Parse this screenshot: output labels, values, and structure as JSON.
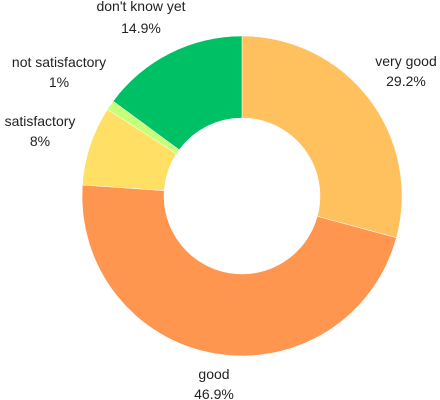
{
  "chart_data": {
    "type": "pie",
    "subtype": "donut",
    "slices": [
      {
        "label": "very good",
        "value_label": "29.2%",
        "value": 29.2,
        "color": "#FFC15E"
      },
      {
        "label": "good",
        "value_label": "46.9%",
        "value": 46.9,
        "color": "#FF9650"
      },
      {
        "label": "satisfactory",
        "value_label": "8%",
        "value": 8.0,
        "color": "#FFDF64"
      },
      {
        "label": "not satisfactory",
        "value_label": "1%",
        "value": 1.0,
        "color": "#C8FF78"
      },
      {
        "label": "don't know yet",
        "value_label": "14.9%",
        "value": 14.9,
        "color": "#00C066"
      }
    ],
    "start_angle": "top",
    "direction": "clockwise",
    "legend": "none"
  }
}
